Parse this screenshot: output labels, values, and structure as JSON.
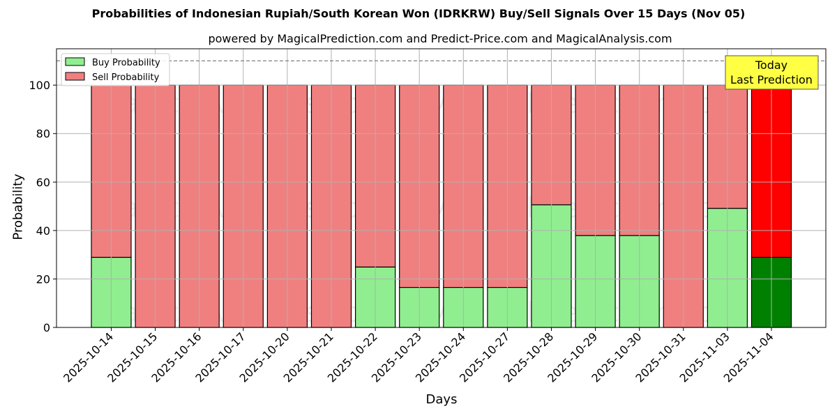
{
  "chart": {
    "title": "Probabilities of Indonesian Rupiah/South Korean Won (IDRKRW) Buy/Sell Signals Over 15 Days (Nov 05)",
    "subtitle": "powered by MagicalPrediction.com and Predict-Price.com and MagicalAnalysis.com",
    "xlabel": "Days",
    "ylabel": "Probability",
    "legend": {
      "buy": "Buy Probability",
      "sell": "Sell Probability"
    },
    "annotation": {
      "line1": "Today",
      "line2": "Last Prediction"
    },
    "watermarks": [
      "MagicalAnalysis.com",
      "MagicalPrediction.com"
    ]
  },
  "colors": {
    "buy": "#90ee90",
    "sell": "#f08080",
    "buy_today": "#008000",
    "sell_today": "#ff0000",
    "annotation_bg": "#ffff44"
  },
  "chart_data": {
    "type": "bar",
    "stacked": true,
    "title": "Probabilities of Indonesian Rupiah/South Korean Won (IDRKRW) Buy/Sell Signals Over 15 Days (Nov 05)",
    "subtitle": "powered by MagicalPrediction.com and Predict-Price.com and MagicalAnalysis.com",
    "xlabel": "Days",
    "ylabel": "Probability",
    "ylim": [
      0,
      115
    ],
    "yticks": [
      0,
      20,
      40,
      60,
      80,
      100
    ],
    "grid": true,
    "legend_position": "upper left",
    "reference_line": {
      "y": 110,
      "style": "dashed"
    },
    "categories": [
      "2025-10-14",
      "2025-10-15",
      "2025-10-16",
      "2025-10-17",
      "2025-10-20",
      "2025-10-21",
      "2025-10-22",
      "2025-10-23",
      "2025-10-24",
      "2025-10-27",
      "2025-10-28",
      "2025-10-29",
      "2025-10-30",
      "2025-10-31",
      "2025-11-03",
      "2025-11-04"
    ],
    "series": [
      {
        "name": "Buy Probability",
        "values": [
          28.9,
          0,
          0,
          0,
          0,
          0,
          24.9,
          16.5,
          16.5,
          16.5,
          50.6,
          37.9,
          37.9,
          0,
          49.1,
          28.9
        ]
      },
      {
        "name": "Sell Probability",
        "values": [
          71.1,
          100,
          100,
          100,
          100,
          100,
          75.1,
          83.5,
          83.5,
          83.5,
          49.4,
          62.1,
          62.1,
          100,
          50.9,
          71.1
        ]
      }
    ],
    "annotations": [
      {
        "text": "Today\nLast Prediction",
        "x": "2025-11-04"
      }
    ]
  }
}
